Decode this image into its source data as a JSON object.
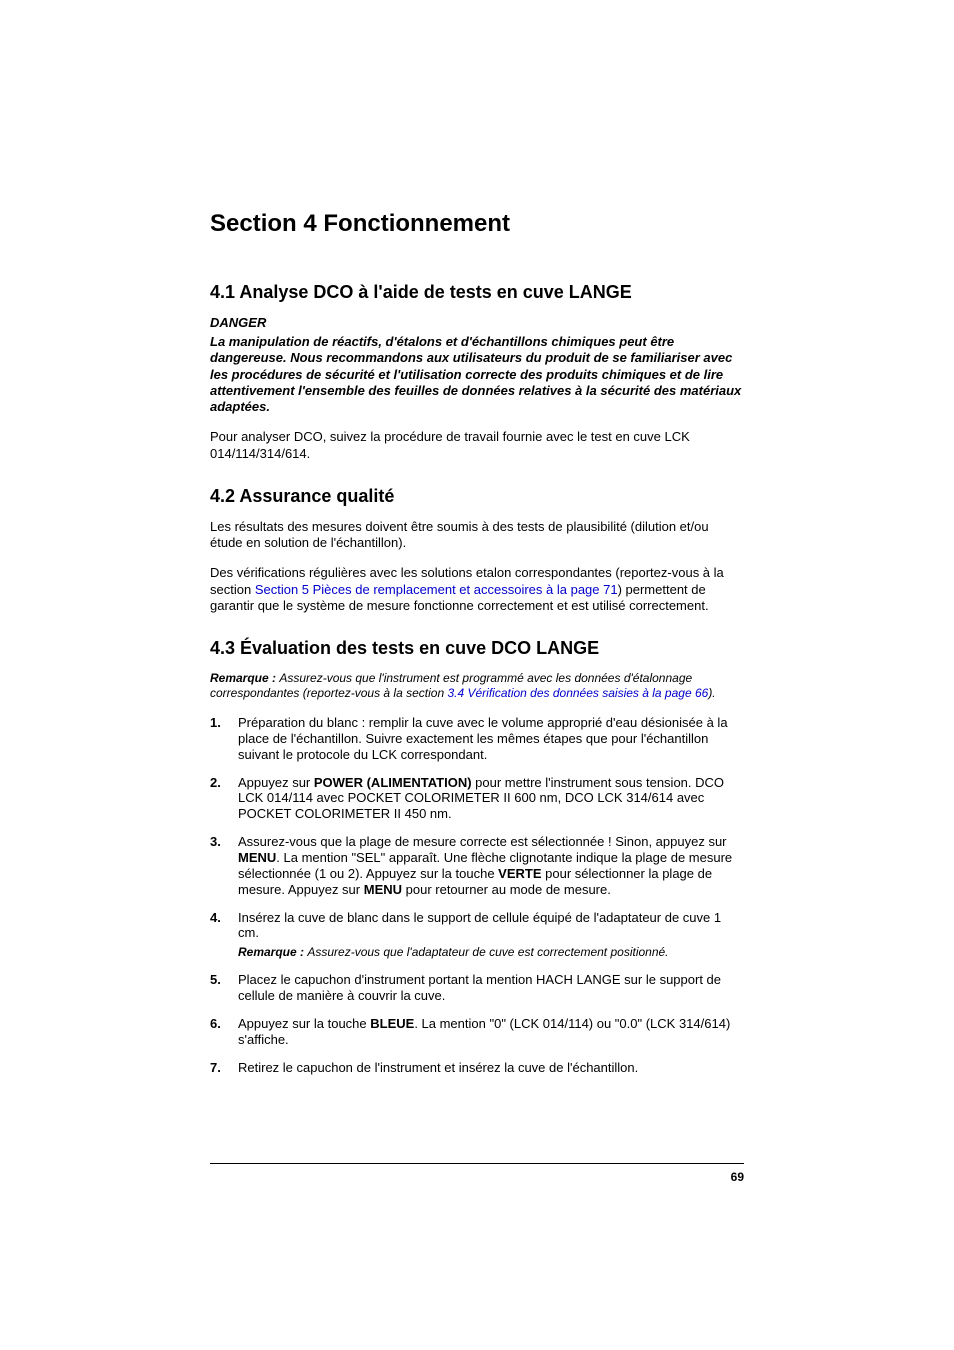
{
  "page": {
    "number": "69",
    "colors": {
      "link": "#0000cc",
      "text": "#000000",
      "bg": "#ffffff",
      "rule": "#000000"
    },
    "typography": {
      "body_size_pt": 13,
      "h1_size_pt": 24,
      "h2_size_pt": 18,
      "remark_size_pt": 12
    }
  },
  "h1": "Section 4    Fonctionnement",
  "s41": {
    "heading": "4.1   Analyse DCO à l'aide de tests en cuve LANGE",
    "danger_label": "DANGER",
    "danger_body": "La manipulation de réactifs, d'étalons et d'échantillons chimiques peut être dangereuse. Nous recommandons aux utilisateurs du produit de se familiariser avec les procédures de sécurité et l'utilisation correcte des produits chimiques et de lire attentivement l'ensemble des feuilles de données relatives à la sécurité des matériaux adaptées.",
    "para": "Pour analyser DCO, suivez la procédure de travail fournie avec le test en cuve LCK 014/114/314/614."
  },
  "s42": {
    "heading": "4.2   Assurance qualité",
    "p1": "Les résultats des mesures doivent être soumis à des tests de plausibilité (dilution et/ou étude en solution de l'échantillon).",
    "p2a": "Des vérifications régulières avec les solutions etalon correspondantes (reportez-vous à la section ",
    "p2_link": "Section 5 Pièces de remplacement et accessoires à la page 71",
    "p2b": ") permettent de garantir que le système de mesure fonctionne correctement et est utilisé correctement."
  },
  "s43": {
    "heading": "4.3   Évaluation des tests en cuve DCO LANGE",
    "remark_label": "Remarque : ",
    "remark_a": "Assurez-vous que l'instrument est programmé avec les données d'étalonnage correspondantes (reportez-vous à la section ",
    "remark_link": "3.4 Vérification des données saisies à la page 66",
    "remark_b": ").",
    "steps": {
      "1": "Préparation du blanc : remplir la cuve avec le volume approprié d'eau désionisée à la place de l'échantillon. Suivre exactement les mêmes étapes que pour l'échantillon suivant le protocole du LCK correspondant.",
      "2a": "Appuyez sur ",
      "2_bold": "POWER (ALIMENTATION)",
      "2b": " pour mettre l'instrument sous tension. DCO LCK 014/114 avec POCKET COLORIMETER II 600 nm, DCO LCK 314/614 avec POCKET COLORIMETER II 450 nm.",
      "3a": "Assurez-vous que la plage de mesure correcte est sélectionnée ! Sinon, appuyez sur ",
      "3_b1": "MENU",
      "3b": ". La mention \"SEL\" apparaît. Une flèche clignotante indique la plage de mesure sélectionnée (1 ou 2). Appuyez sur la touche ",
      "3_b2": "VERTE",
      "3c": " pour sélectionner la plage de mesure. Appuyez sur ",
      "3_b3": "MENU",
      "3d": " pour retourner au mode de mesure.",
      "4": "Insérez la cuve de blanc dans le support de cellule équipé de l'adaptateur de cuve 1 cm.",
      "4_remark_label": "Remarque : ",
      "4_remark": "Assurez-vous que l'adaptateur de cuve est correctement positionné.",
      "5": "Placez le capuchon d'instrument portant la mention HACH LANGE sur le support de cellule de manière à couvrir la cuve.",
      "6a": "Appuyez sur la touche ",
      "6_bold": "BLEUE",
      "6b": ". La mention \"0\" (LCK 014/114) ou \"0.0\" (LCK 314/614) s'affiche.",
      "7": "Retirez le capuchon de l'instrument et insérez la cuve de l'échantillon."
    }
  }
}
